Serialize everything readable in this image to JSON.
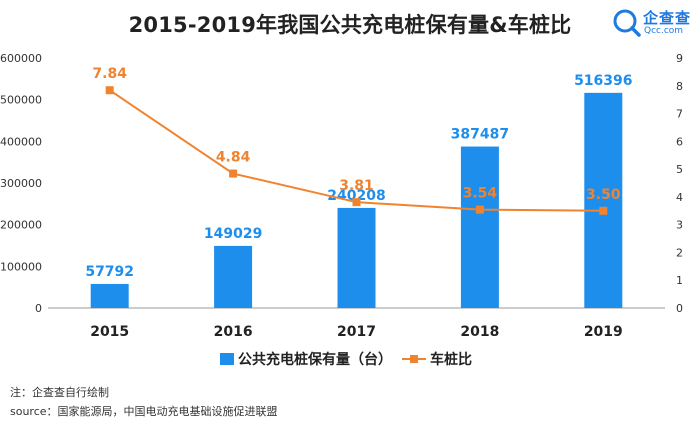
{
  "title": "2015-2019年我国公共充电桩保有量&车桩比",
  "brand": {
    "name": "企查查",
    "url": "Qcc.com"
  },
  "legend": {
    "bar_label": "公共充电桩保有量（台）",
    "line_label": "车桩比"
  },
  "notes": {
    "note1": "注：企查查自行绘制",
    "note2": "source：国家能源局，中国电动充电基础设施促进联盟"
  },
  "colors": {
    "bar": "#1e8eed",
    "line": "#f0832f",
    "axis": "#999999"
  },
  "chart_data": {
    "type": "bar",
    "categories": [
      "2015",
      "2016",
      "2017",
      "2018",
      "2019"
    ],
    "series": [
      {
        "name": "公共充电桩保有量（台）",
        "type": "bar",
        "axis": "left",
        "values": [
          57792,
          149029,
          240208,
          387487,
          516396
        ]
      },
      {
        "name": "车桩比",
        "type": "line",
        "axis": "right",
        "values": [
          7.84,
          4.84,
          3.81,
          3.54,
          3.5
        ]
      }
    ],
    "y_left": {
      "min": 0,
      "max": 600000,
      "ticks": [
        0,
        100000,
        200000,
        300000,
        400000,
        500000,
        600000
      ]
    },
    "y_right": {
      "min": 0,
      "max": 9,
      "ticks": [
        0,
        1,
        2,
        3,
        4,
        5,
        6,
        7,
        8,
        9
      ]
    },
    "line_labels": [
      "7.84",
      "4.84",
      "3.81",
      "3.54",
      "3.50"
    ],
    "grid": false,
    "legend_position": "bottom"
  }
}
